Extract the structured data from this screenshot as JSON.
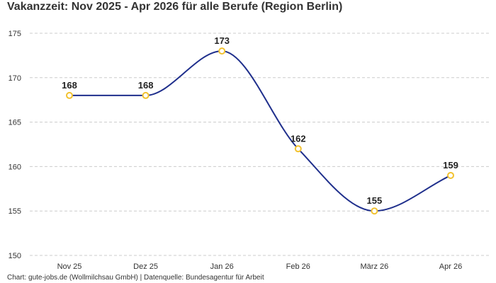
{
  "chart_data": {
    "type": "line",
    "title": "Vakanzzeit: Nov 2025 - Apr 2026 für alle Berufe (Region Berlin)",
    "xlabel": "",
    "ylabel": "",
    "categories": [
      "Nov 25",
      "Dez 25",
      "Jan 26",
      "Feb 26",
      "März 26",
      "Apr 26"
    ],
    "series": [
      {
        "values": [
          168,
          168,
          173,
          162,
          155,
          159
        ]
      }
    ],
    "ylim": [
      150,
      175
    ],
    "yticks": [
      150,
      155,
      160,
      165,
      170,
      175
    ],
    "grid": true,
    "legend": "none",
    "line_color": "#1f2f8c",
    "marker_color": "#f2c230",
    "grid_color": "#cccccc",
    "smooth": true,
    "data_labels": true
  },
  "footer": "Chart: gute-jobs.de (Wollmilchsau GmbH) | Datenquelle: Bundesagentur für Arbeit"
}
